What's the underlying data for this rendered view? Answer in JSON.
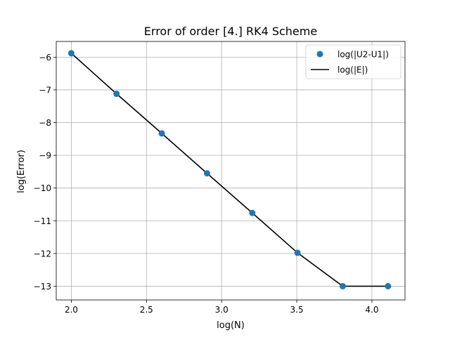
{
  "chart_data": {
    "type": "line",
    "title": "Error of order [4.] RK4 Scheme",
    "xlabel": "log(N)",
    "ylabel": "log(Error)",
    "xlim": [
      1.9,
      4.22
    ],
    "ylim": [
      -13.42,
      -5.52
    ],
    "xticks": [
      2.0,
      2.5,
      3.0,
      3.5,
      4.0
    ],
    "xtick_labels": [
      "2.0",
      "2.5",
      "3.0",
      "3.5",
      "4.0"
    ],
    "yticks": [
      -6,
      -7,
      -8,
      -9,
      -10,
      -11,
      -12,
      -13
    ],
    "ytick_labels": [
      "−6",
      "−7",
      "−8",
      "−9",
      "−10",
      "−11",
      "−12",
      "−13"
    ],
    "grid": true,
    "legend_position": "top-right",
    "series": [
      {
        "name": "log(|U2-U1|)",
        "style": "markers",
        "color": "#1f77b4",
        "x": [
          2.0,
          2.301,
          2.602,
          2.903,
          3.204,
          3.505,
          3.806,
          4.107
        ],
        "y": [
          -5.88,
          -7.12,
          -8.33,
          -9.55,
          -10.76,
          -11.98,
          -13.0,
          -13.0
        ]
      },
      {
        "name": "log(|E|)",
        "style": "line",
        "color": "#000000",
        "x": [
          2.0,
          2.301,
          2.602,
          2.903,
          3.204,
          3.505,
          3.806,
          4.107
        ],
        "y": [
          -5.88,
          -7.12,
          -8.33,
          -9.55,
          -10.76,
          -11.98,
          -13.0,
          -13.0
        ]
      }
    ]
  }
}
